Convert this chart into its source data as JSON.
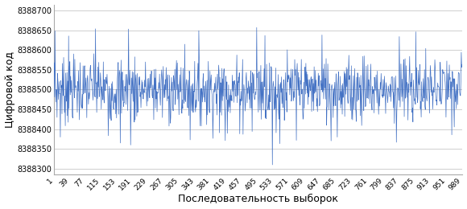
{
  "n_samples": 1000,
  "seed": 7,
  "mean": 8388500,
  "std": 40,
  "ylim": [
    8388285,
    8388715
  ],
  "yticks": [
    8388300,
    8388350,
    8388400,
    8388450,
    8388500,
    8388550,
    8388600,
    8388650,
    8388700
  ],
  "xticks": [
    1,
    39,
    77,
    115,
    153,
    191,
    229,
    267,
    305,
    343,
    381,
    419,
    457,
    495,
    533,
    571,
    609,
    647,
    685,
    723,
    761,
    799,
    837,
    875,
    913,
    951,
    989
  ],
  "xlabel": "Последовательность выборок",
  "ylabel": "Цифровой код",
  "line_color": "#4472C4",
  "line_width": 0.5,
  "bg_color": "#ffffff",
  "grid_color": "#c8c8c8",
  "figsize": [
    5.8,
    2.6
  ],
  "dpi": 100
}
